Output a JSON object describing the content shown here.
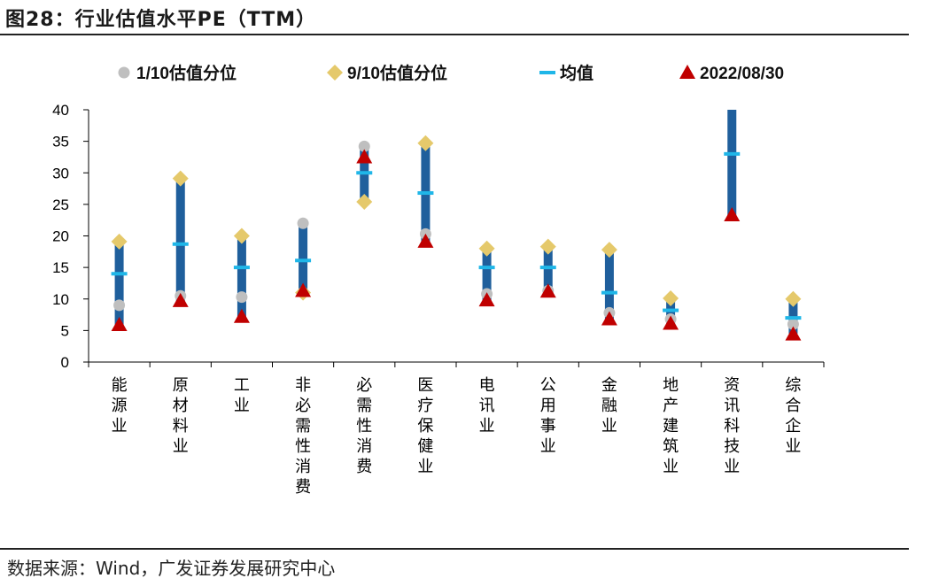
{
  "title": "图28：行业估值水平PE（TTM）",
  "source": "数据来源：Wind，广发证券发展研究中心",
  "colors": {
    "bar": "#1F5F9C",
    "p10": "#BFBFBF",
    "p90": "#E5C96B",
    "mean": "#1FB6E8",
    "current": "#C00000",
    "axis": "#000000"
  },
  "chart_data": {
    "type": "range",
    "title": "行业估值水平PE（TTM）",
    "xlabel": "",
    "ylabel": "",
    "ylim": [
      0,
      40
    ],
    "yticks": [
      0,
      5,
      10,
      15,
      20,
      25,
      30,
      35,
      40
    ],
    "grid": false,
    "legend_position": "top",
    "legend": [
      "1/10估值分位",
      "9/10估值分位",
      "均值",
      "2022/08/30"
    ],
    "categories": [
      "能源业",
      "原材料业",
      "工业",
      "非必需性消费",
      "必需性消费",
      "医疗保健业",
      "电讯业",
      "公用事业",
      "金融业",
      "地产建筑业",
      "资讯科技业",
      "综合企业"
    ],
    "bars": [
      {
        "low": 5,
        "high": 19
      },
      {
        "low": 9,
        "high": 29
      },
      {
        "low": 6.5,
        "high": 20
      },
      {
        "low": 11,
        "high": 22
      },
      {
        "low": 25.5,
        "high": 34
      },
      {
        "low": 19,
        "high": 34.5
      },
      {
        "low": 9.5,
        "high": 18
      },
      {
        "low": 11,
        "high": 18
      },
      {
        "low": 6,
        "high": 17.5
      },
      {
        "low": 5.5,
        "high": 10
      },
      {
        "low": 23,
        "high": 40
      },
      {
        "low": 4.5,
        "high": 10
      }
    ],
    "series": [
      {
        "name": "1/10估值分位",
        "values": [
          9,
          10.5,
          10.3,
          22,
          34.2,
          20.3,
          10.8,
          11.3,
          7.8,
          6.8,
          null,
          6
        ]
      },
      {
        "name": "9/10估值分位",
        "values": [
          19.1,
          29.1,
          20,
          11,
          25.4,
          34.7,
          18,
          18.3,
          17.8,
          10.1,
          null,
          10
        ]
      },
      {
        "name": "均值",
        "values": [
          14,
          18.7,
          15,
          16.1,
          30,
          26.8,
          15,
          15,
          11,
          8.2,
          33,
          7
        ]
      },
      {
        "name": "2022/08/30",
        "values": [
          5.9,
          9.7,
          7.2,
          11.3,
          32.5,
          19.1,
          9.8,
          11.2,
          6.8,
          6.1,
          23.3,
          4.4
        ]
      }
    ]
  }
}
